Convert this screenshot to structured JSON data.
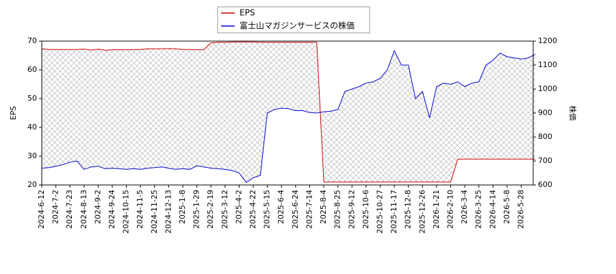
{
  "chart_data": {
    "type": "line",
    "categories": [
      "2024-6-12",
      null,
      "2024-7-2",
      null,
      "2024-7-23",
      null,
      "2024-8-13",
      null,
      "2024-9-2",
      null,
      "2024-9-24",
      null,
      "2024-10-15",
      null,
      "2024-11-5",
      null,
      "2024-11-25",
      null,
      "2024-12-13",
      null,
      "2025-1-8",
      null,
      "2025-1-29",
      null,
      "2025-2-19",
      null,
      "2025-3-12",
      null,
      "2025-4-2",
      null,
      "2025-4-22",
      null,
      "2025-5-15",
      null,
      "2025-6-4",
      null,
      "2025-6-24",
      null,
      "2025-7-14",
      null,
      "2025-8-4",
      null,
      "2025-8-25",
      null,
      "2025-9-12",
      null,
      "2025-10-6",
      null,
      "2025-10-27",
      null,
      "2025-11-17",
      null,
      "2025-12-8",
      null,
      "2025-12-26",
      null,
      "2026-1-21",
      null,
      "2026-2-10",
      null,
      "2026-3-4",
      null,
      "2026-3-25",
      null,
      "2026-4-14",
      null,
      "2026-5-8",
      null,
      "2026-5-28",
      null,
      null
    ],
    "series": [
      {
        "name": "EPS",
        "color": "#cc0000",
        "axis": "y",
        "values": [
          67.3,
          67.1,
          67.1,
          67.1,
          67.1,
          67.1,
          67.2,
          66.9,
          67.2,
          66.8,
          67.0,
          67.0,
          67.0,
          67.1,
          67.1,
          67.3,
          67.3,
          67.3,
          67.4,
          67.3,
          67.1,
          67.1,
          67.0,
          67.0,
          69.4,
          69.6,
          69.6,
          69.7,
          69.7,
          69.7,
          69.7,
          69.6,
          69.6,
          69.6,
          69.6,
          69.6,
          69.6,
          69.6,
          69.6,
          69.6,
          21,
          21,
          21,
          21,
          21,
          21,
          21,
          21,
          21,
          21,
          21,
          21,
          21,
          21,
          21,
          21,
          21,
          21,
          21,
          29,
          29,
          29,
          29,
          29,
          29,
          29,
          29,
          29,
          29,
          29,
          29
        ]
      },
      {
        "name": "富士山マガジンサービスの株価",
        "color": "#0000cc",
        "axis": "y2",
        "values": [
          670,
          672,
          678,
          685,
          695,
          700,
          665,
          675,
          678,
          668,
          670,
          668,
          665,
          668,
          665,
          670,
          672,
          675,
          670,
          665,
          668,
          665,
          680,
          675,
          670,
          668,
          665,
          660,
          650,
          610,
          630,
          640,
          900,
          915,
          920,
          918,
          910,
          910,
          902,
          900,
          905,
          908,
          915,
          990,
          1000,
          1010,
          1025,
          1030,
          1045,
          1080,
          1160,
          1100,
          1100,
          960,
          990,
          880,
          1010,
          1025,
          1020,
          1030,
          1010,
          1025,
          1030,
          1100,
          1120,
          1150,
          1135,
          1130,
          1125,
          1130,
          1145
        ]
      }
    ],
    "ylabel": "EPS",
    "y2label": "株価",
    "ylim": [
      20,
      70
    ],
    "yticks": [
      20,
      30,
      40,
      50,
      60,
      70
    ],
    "y2lim": [
      600,
      1200
    ],
    "y2ticks": [
      600,
      700,
      800,
      900,
      1000,
      1100,
      1200
    ],
    "legend": "top"
  }
}
